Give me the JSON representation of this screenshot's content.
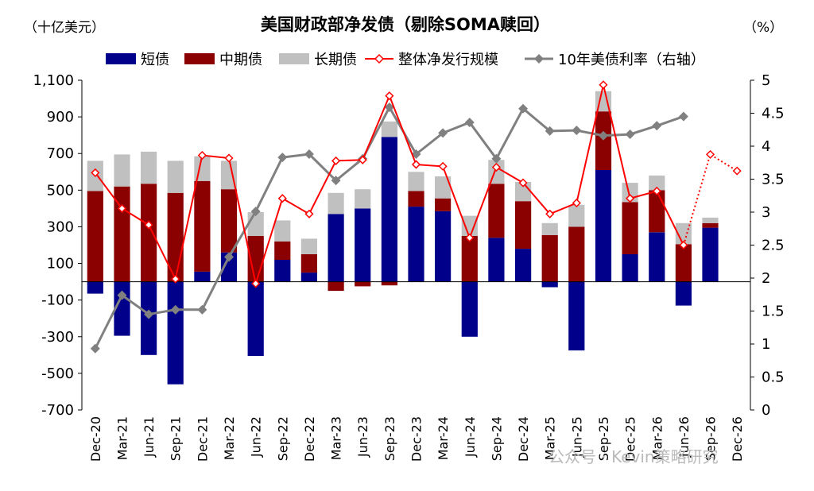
{
  "watermark": "公众号 · Kevin策略研究",
  "chart_data": {
    "type": "bar",
    "title": "美国财政部净发债（剔除SOMA赎回）",
    "left_unit": "（十亿美元）",
    "right_unit": "（%）",
    "categories": [
      "Dec-20",
      "Mar-21",
      "Jun-21",
      "Sep-21",
      "Dec-21",
      "Mar-22",
      "Jun-22",
      "Sep-22",
      "Dec-22",
      "Mar-23",
      "Jun-23",
      "Sep-23",
      "Dec-23",
      "Mar-24",
      "Jun-24",
      "Sep-24",
      "Dec-24",
      "Mar-25",
      "Jun-25",
      "Sep-25",
      "Dec-25",
      "Mar-26",
      "Jun-26",
      "Sep-26",
      "Dec-26"
    ],
    "ylim_left": [
      -700,
      1100
    ],
    "yticks_left": [
      "1,100",
      "900",
      "700",
      "500",
      "300",
      "100",
      "-100",
      "-300",
      "-500",
      "-700"
    ],
    "ylim_right": [
      0,
      5
    ],
    "yticks_right": [
      "5",
      "4.5",
      "4",
      "3.5",
      "3",
      "2.5",
      "2",
      "1.5",
      "1",
      "0.5",
      "0"
    ],
    "bar_series": [
      {
        "name": "短债",
        "color": "#00008b",
        "values": [
          -65,
          -295,
          -400,
          -560,
          55,
          160,
          -405,
          120,
          50,
          370,
          400,
          790,
          410,
          385,
          -300,
          240,
          180,
          -30,
          -375,
          610,
          150,
          270,
          -130,
          295,
          null
        ]
      },
      {
        "name": "中期债",
        "color": "#8b0000",
        "values": [
          495,
          520,
          535,
          485,
          495,
          345,
          250,
          100,
          100,
          -50,
          -25,
          -20,
          85,
          70,
          250,
          295,
          260,
          255,
          300,
          320,
          285,
          230,
          205,
          25,
          null
        ]
      },
      {
        "name": "长期债",
        "color": "#c0c0c0",
        "values": [
          165,
          175,
          175,
          175,
          135,
          155,
          130,
          115,
          85,
          115,
          105,
          85,
          105,
          120,
          110,
          130,
          105,
          65,
          120,
          110,
          105,
          80,
          115,
          30,
          null
        ]
      }
    ],
    "net_issuance": {
      "name": "整体净发行规模",
      "color": "#ff0000",
      "values": [
        595,
        400,
        310,
        15,
        690,
        675,
        -10,
        455,
        370,
        660,
        665,
        1015,
        640,
        630,
        240,
        625,
        540,
        370,
        430,
        1075,
        455,
        495,
        200,
        695,
        605
      ],
      "projected_from_index": 22
    },
    "yield_10y": {
      "name": "10年美债利率（右轴）",
      "color": "#808080",
      "values": [
        0.93,
        1.74,
        1.45,
        1.52,
        1.52,
        2.32,
        3.01,
        3.83,
        3.88,
        3.48,
        3.81,
        4.59,
        3.88,
        4.2,
        4.36,
        3.81,
        4.57,
        4.23,
        4.24,
        4.16,
        4.18,
        4.31,
        4.45,
        null,
        null
      ]
    }
  }
}
